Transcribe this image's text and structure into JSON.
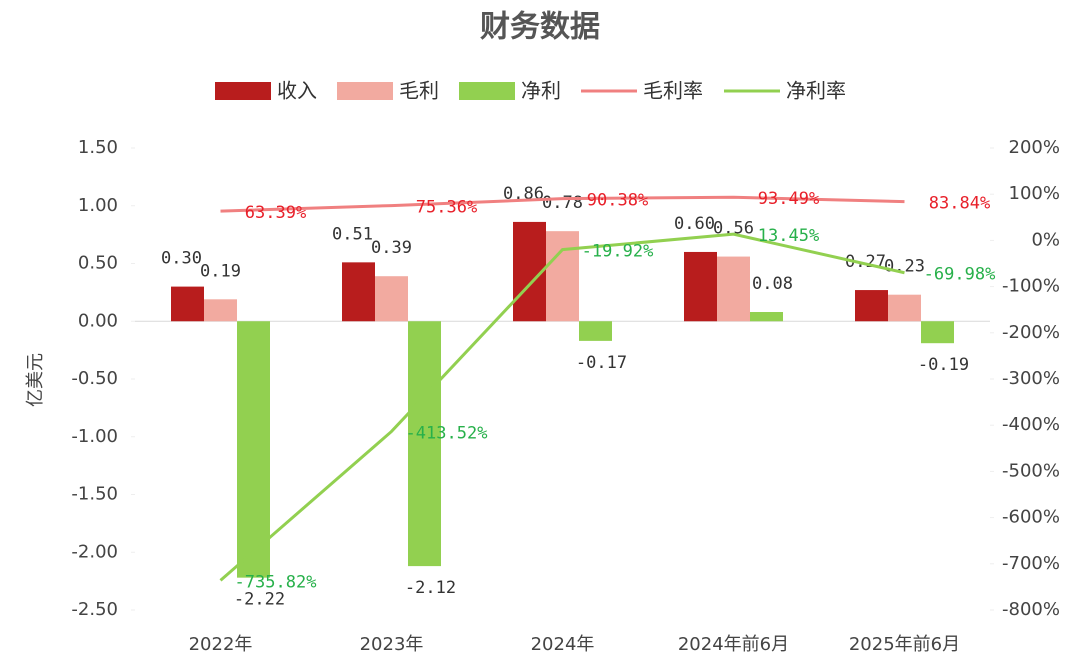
{
  "chart_data": {
    "type": "combo",
    "title": "财务数据",
    "y_label": "亿美元",
    "categories": [
      "2022年",
      "2023年",
      "2024年",
      "2024年前6月",
      "2025年前6月"
    ],
    "series": [
      {
        "name": "收入",
        "type": "bar",
        "color": "#b81d1d",
        "values": [
          0.3,
          0.51,
          0.86,
          0.6,
          0.27
        ],
        "value_labels": [
          "0.30",
          "0.51",
          "0.86",
          "0.60",
          "0.27"
        ]
      },
      {
        "name": "毛利",
        "type": "bar",
        "color": "#f2aaa0",
        "values": [
          0.19,
          0.39,
          0.78,
          0.56,
          0.23
        ]
      },
      {
        "name": "净利",
        "type": "bar",
        "color": "#92d050",
        "values": [
          -2.22,
          -2.12,
          -0.17,
          0.08,
          -0.19
        ]
      },
      {
        "name": "毛利率",
        "type": "line",
        "axis": "y2",
        "color": "#f08080",
        "label_color": "#e8202a",
        "values": [
          63.39,
          75.36,
          90.38,
          93.49,
          83.84
        ],
        "value_labels": [
          "63.39%",
          "75.36%",
          "90.38%",
          "93.49%",
          "83.84%"
        ]
      },
      {
        "name": "净利率",
        "type": "line",
        "axis": "y2",
        "color": "#92d050",
        "label_color": "#27b04a",
        "values": [
          -735.82,
          -413.52,
          -19.92,
          13.45,
          -69.98
        ],
        "value_labels": [
          "-735.82%",
          "-413.52%",
          "-19.92%",
          "13.45%",
          "-69.98%"
        ]
      }
    ],
    "ylim": [
      -2.5,
      1.5
    ],
    "yticks": [
      {
        "value": 1.5,
        "label": "1.50"
      },
      {
        "value": 1,
        "label": "1.00"
      },
      {
        "value": 0.5,
        "label": "0.50"
      },
      {
        "value": 0,
        "label": "0.00"
      },
      {
        "value": -0.5,
        "label": "-0.50"
      },
      {
        "value": -1,
        "label": "-1.00"
      },
      {
        "value": -1.5,
        "label": "-1.50"
      },
      {
        "value": -2,
        "label": "-2.00"
      },
      {
        "value": -2.5,
        "label": "-2.50"
      }
    ],
    "y2lim": [
      -800,
      200
    ],
    "y2ticks": [
      {
        "value": 200,
        "label": "200%"
      },
      {
        "value": 100,
        "label": "100%"
      },
      {
        "value": 0,
        "label": "0%"
      },
      {
        "value": -100,
        "label": "-100%"
      },
      {
        "value": -200,
        "label": "-200%"
      },
      {
        "value": -300,
        "label": "-300%"
      },
      {
        "value": -400,
        "label": "-400%"
      },
      {
        "value": -500,
        "label": "-500%"
      },
      {
        "value": -600,
        "label": "-600%"
      },
      {
        "value": -700,
        "label": "-700%"
      },
      {
        "value": -800,
        "label": "-800%"
      }
    ],
    "grid": false,
    "legend": "top"
  }
}
